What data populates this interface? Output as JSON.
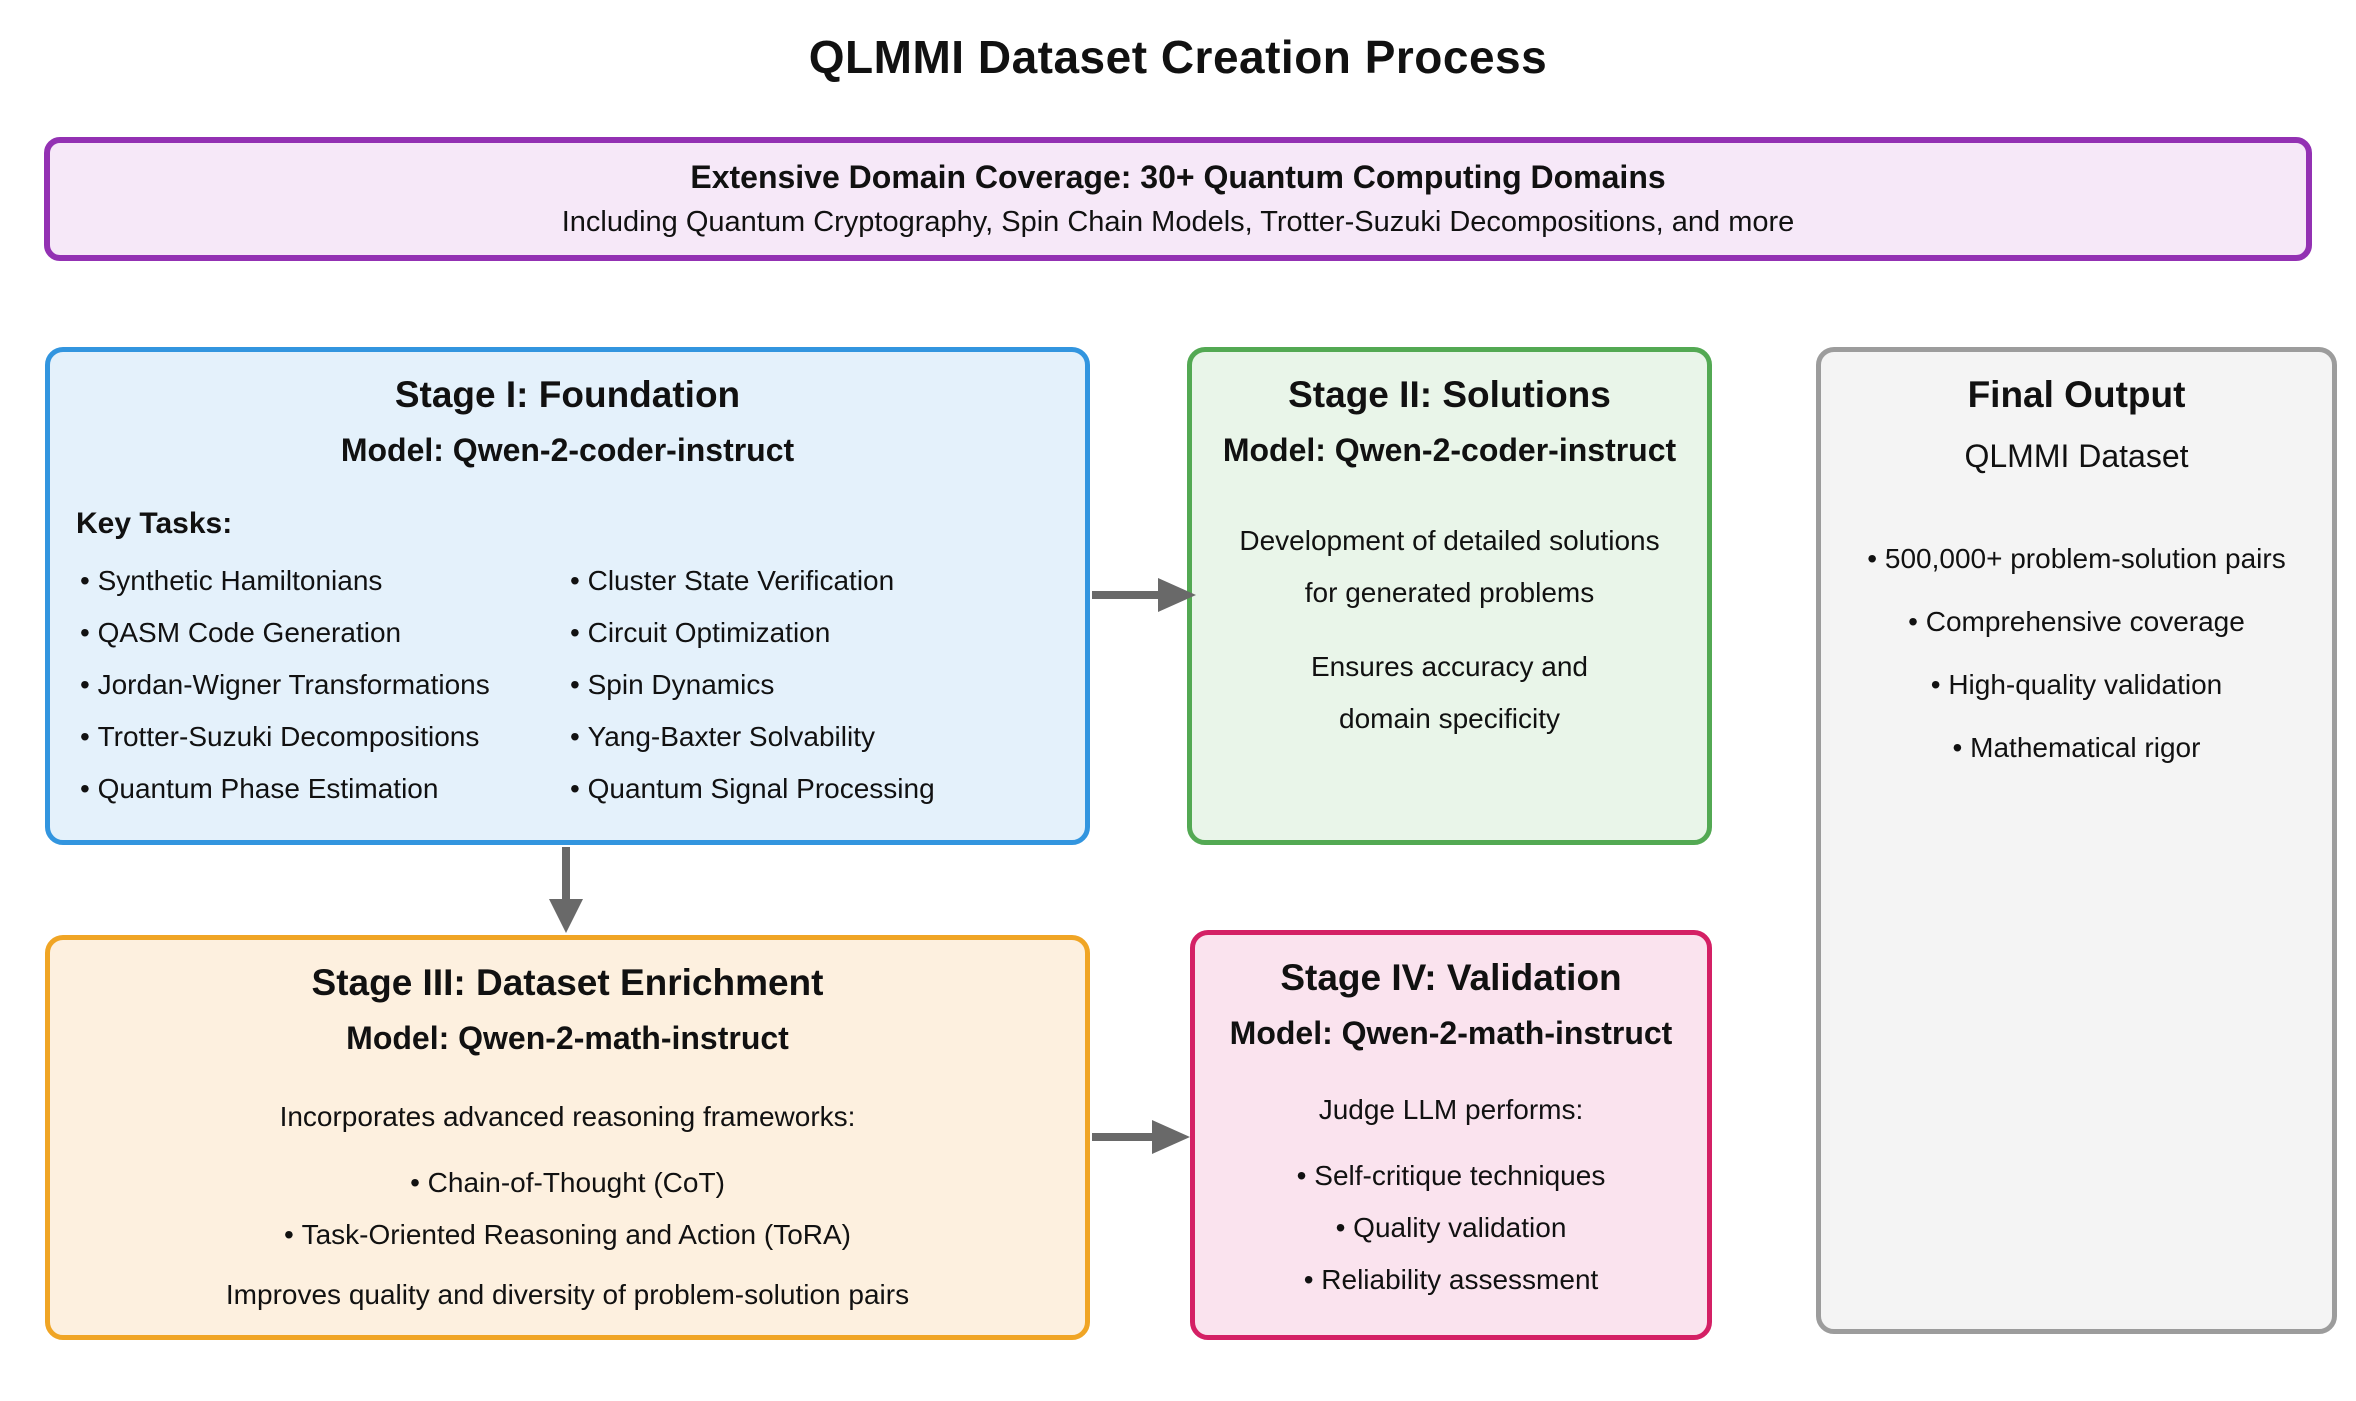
{
  "page_title": "QLMMI Dataset Creation Process",
  "banner": {
    "heading": "Extensive Domain Coverage: 30+ Quantum Computing Domains",
    "subheading": "Including Quantum Cryptography, Spin Chain Models, Trotter-Suzuki Decompositions, and more"
  },
  "stage1": {
    "title": "Stage I: Foundation",
    "model": "Model: Qwen-2-coder-instruct",
    "tasks_label": "Key Tasks:",
    "tasks_col1": [
      "Synthetic Hamiltonians",
      "QASM Code Generation",
      "Jordan-Wigner Transformations",
      "Trotter-Suzuki Decompositions",
      "Quantum Phase Estimation"
    ],
    "tasks_col2": [
      "Cluster State Verification",
      "Circuit Optimization",
      "Spin Dynamics",
      "Yang-Baxter Solvability",
      "Quantum Signal Processing"
    ]
  },
  "stage2": {
    "title": "Stage II: Solutions",
    "model": "Model: Qwen-2-coder-instruct",
    "body1_line1": "Development of detailed solutions",
    "body1_line2": "for generated problems",
    "body2_line1": "Ensures accuracy and",
    "body2_line2": "domain specificity"
  },
  "stage3": {
    "title": "Stage III: Dataset Enrichment",
    "model": "Model: Qwen-2-math-instruct",
    "intro": "Incorporates advanced reasoning frameworks:",
    "bullets": [
      "Chain-of-Thought (CoT)",
      "Task-Oriented Reasoning and Action (ToRA)"
    ],
    "outro": "Improves quality and diversity of problem-solution pairs"
  },
  "stage4": {
    "title": "Stage IV: Validation",
    "model": "Model: Qwen-2-math-instruct",
    "intro": "Judge LLM performs:",
    "bullets": [
      "Self-critique techniques",
      "Quality validation",
      "Reliability assessment"
    ]
  },
  "final_output": {
    "title": "Final Output",
    "subtitle": "QLMMI Dataset",
    "bullets": [
      "500,000+ problem-solution pairs",
      "Comprehensive coverage",
      "High-quality validation",
      "Mathematical rigor"
    ]
  },
  "colors": {
    "banner_border": "#9331B3",
    "banner_fill": "#F6E8F8",
    "stage1_border": "#3295DF",
    "stage1_fill": "#E4F1FB",
    "stage2_border": "#53A953",
    "stage2_fill": "#E9F5E9",
    "stage3_border": "#F0A525",
    "stage3_fill": "#FDF0DF",
    "stage4_border": "#D42065",
    "stage4_fill": "#FAE3EE",
    "final_border": "#9C9C9C",
    "final_fill": "#F4F4F4",
    "arrow": "#696969"
  }
}
